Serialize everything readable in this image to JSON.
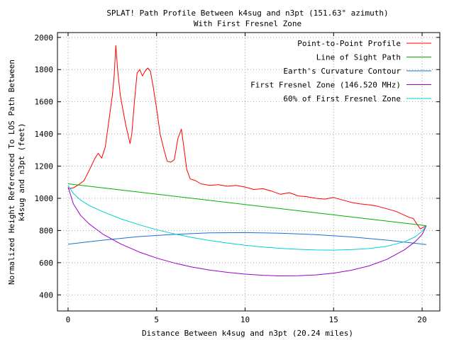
{
  "chart_data": {
    "type": "line",
    "title": "SPLAT! Path Profile Between k4sug and n3pt (151.63° azimuth)",
    "subtitle": "With First Fresnel Zone",
    "xlabel": "Distance Between k4sug and n3pt (20.24 miles)",
    "ylabel_line1": "Normalized Height Referenced To LOS Path Between",
    "ylabel_line2": "k4sug and n3pt (feet)",
    "xlim": [
      -0.6,
      21.0
    ],
    "ylim": [
      300,
      2030
    ],
    "x_ticks": [
      0,
      5,
      10,
      15,
      20
    ],
    "y_ticks": [
      400,
      600,
      800,
      1000,
      1200,
      1400,
      1600,
      1800,
      2000
    ],
    "grid": true,
    "legend_position": "top-right",
    "series": [
      {
        "name": "Point-to-Point Profile",
        "color": "#ff0000",
        "points": [
          [
            0,
            1060
          ],
          [
            0.3,
            1065
          ],
          [
            0.6,
            1085
          ],
          [
            0.9,
            1110
          ],
          [
            1.2,
            1175
          ],
          [
            1.5,
            1245
          ],
          [
            1.7,
            1280
          ],
          [
            1.9,
            1250
          ],
          [
            2.1,
            1320
          ],
          [
            2.3,
            1480
          ],
          [
            2.5,
            1640
          ],
          [
            2.6,
            1760
          ],
          [
            2.7,
            1950
          ],
          [
            2.8,
            1800
          ],
          [
            2.95,
            1640
          ],
          [
            3.1,
            1550
          ],
          [
            3.25,
            1460
          ],
          [
            3.4,
            1390
          ],
          [
            3.5,
            1340
          ],
          [
            3.6,
            1400
          ],
          [
            3.75,
            1600
          ],
          [
            3.9,
            1780
          ],
          [
            4.05,
            1800
          ],
          [
            4.2,
            1760
          ],
          [
            4.35,
            1790
          ],
          [
            4.5,
            1810
          ],
          [
            4.65,
            1790
          ],
          [
            4.8,
            1700
          ],
          [
            5.0,
            1560
          ],
          [
            5.2,
            1400
          ],
          [
            5.4,
            1310
          ],
          [
            5.6,
            1230
          ],
          [
            5.8,
            1225
          ],
          [
            6.0,
            1240
          ],
          [
            6.2,
            1370
          ],
          [
            6.4,
            1430
          ],
          [
            6.55,
            1310
          ],
          [
            6.7,
            1180
          ],
          [
            6.9,
            1120
          ],
          [
            7.2,
            1110
          ],
          [
            7.5,
            1090
          ],
          [
            8.0,
            1080
          ],
          [
            8.5,
            1085
          ],
          [
            9.0,
            1075
          ],
          [
            9.5,
            1080
          ],
          [
            10.0,
            1070
          ],
          [
            10.5,
            1055
          ],
          [
            11.0,
            1060
          ],
          [
            11.5,
            1045
          ],
          [
            12.0,
            1025
          ],
          [
            12.5,
            1035
          ],
          [
            13.0,
            1015
          ],
          [
            13.5,
            1010
          ],
          [
            14.0,
            1000
          ],
          [
            14.5,
            995
          ],
          [
            15.0,
            1005
          ],
          [
            15.5,
            990
          ],
          [
            16.0,
            975
          ],
          [
            16.5,
            965
          ],
          [
            17.0,
            960
          ],
          [
            17.5,
            950
          ],
          [
            18.0,
            935
          ],
          [
            18.5,
            920
          ],
          [
            19.0,
            895
          ],
          [
            19.3,
            880
          ],
          [
            19.5,
            875
          ],
          [
            19.7,
            840
          ],
          [
            19.9,
            810
          ],
          [
            20.24,
            830
          ]
        ]
      },
      {
        "name": "Line of Sight Path",
        "color": "#00b000",
        "points": [
          [
            0,
            1090
          ],
          [
            20.24,
            830
          ]
        ]
      },
      {
        "name": "Earth's Curvature Contour",
        "color": "#1a6fd6",
        "points": [
          [
            0,
            715
          ],
          [
            2,
            740
          ],
          [
            4,
            762
          ],
          [
            6,
            776
          ],
          [
            8,
            785
          ],
          [
            10,
            787
          ],
          [
            12,
            783
          ],
          [
            14,
            774
          ],
          [
            16,
            760
          ],
          [
            18,
            740
          ],
          [
            20.24,
            713
          ]
        ]
      },
      {
        "name": "First Fresnel Zone (146.520 MHz)",
        "color": "#9b00c8",
        "points": [
          [
            0,
            1070
          ],
          [
            0.3,
            965
          ],
          [
            0.7,
            895
          ],
          [
            1.2,
            840
          ],
          [
            2,
            775
          ],
          [
            3,
            715
          ],
          [
            4,
            667
          ],
          [
            5,
            629
          ],
          [
            6,
            598
          ],
          [
            7,
            573
          ],
          [
            8,
            554
          ],
          [
            9,
            540
          ],
          [
            10,
            529
          ],
          [
            11,
            522
          ],
          [
            12,
            518
          ],
          [
            13,
            519
          ],
          [
            14,
            524
          ],
          [
            15,
            535
          ],
          [
            16,
            553
          ],
          [
            17,
            580
          ],
          [
            18,
            620
          ],
          [
            19,
            680
          ],
          [
            19.6,
            730
          ],
          [
            20.0,
            775
          ],
          [
            20.24,
            830
          ]
        ]
      },
      {
        "name": "60% of First Fresnel Zone",
        "color": "#00d0d0",
        "points": [
          [
            0,
            1080
          ],
          [
            0.3,
            1030
          ],
          [
            0.7,
            990
          ],
          [
            1.2,
            955
          ],
          [
            2,
            915
          ],
          [
            3,
            872
          ],
          [
            4,
            836
          ],
          [
            5,
            805
          ],
          [
            6,
            779
          ],
          [
            7,
            757
          ],
          [
            8,
            738
          ],
          [
            9,
            722
          ],
          [
            10,
            708
          ],
          [
            11,
            697
          ],
          [
            12,
            689
          ],
          [
            13,
            683
          ],
          [
            14,
            679
          ],
          [
            15,
            678
          ],
          [
            16,
            681
          ],
          [
            17,
            688
          ],
          [
            18,
            702
          ],
          [
            19,
            730
          ],
          [
            19.6,
            760
          ],
          [
            20.0,
            795
          ],
          [
            20.24,
            830
          ]
        ]
      }
    ]
  }
}
